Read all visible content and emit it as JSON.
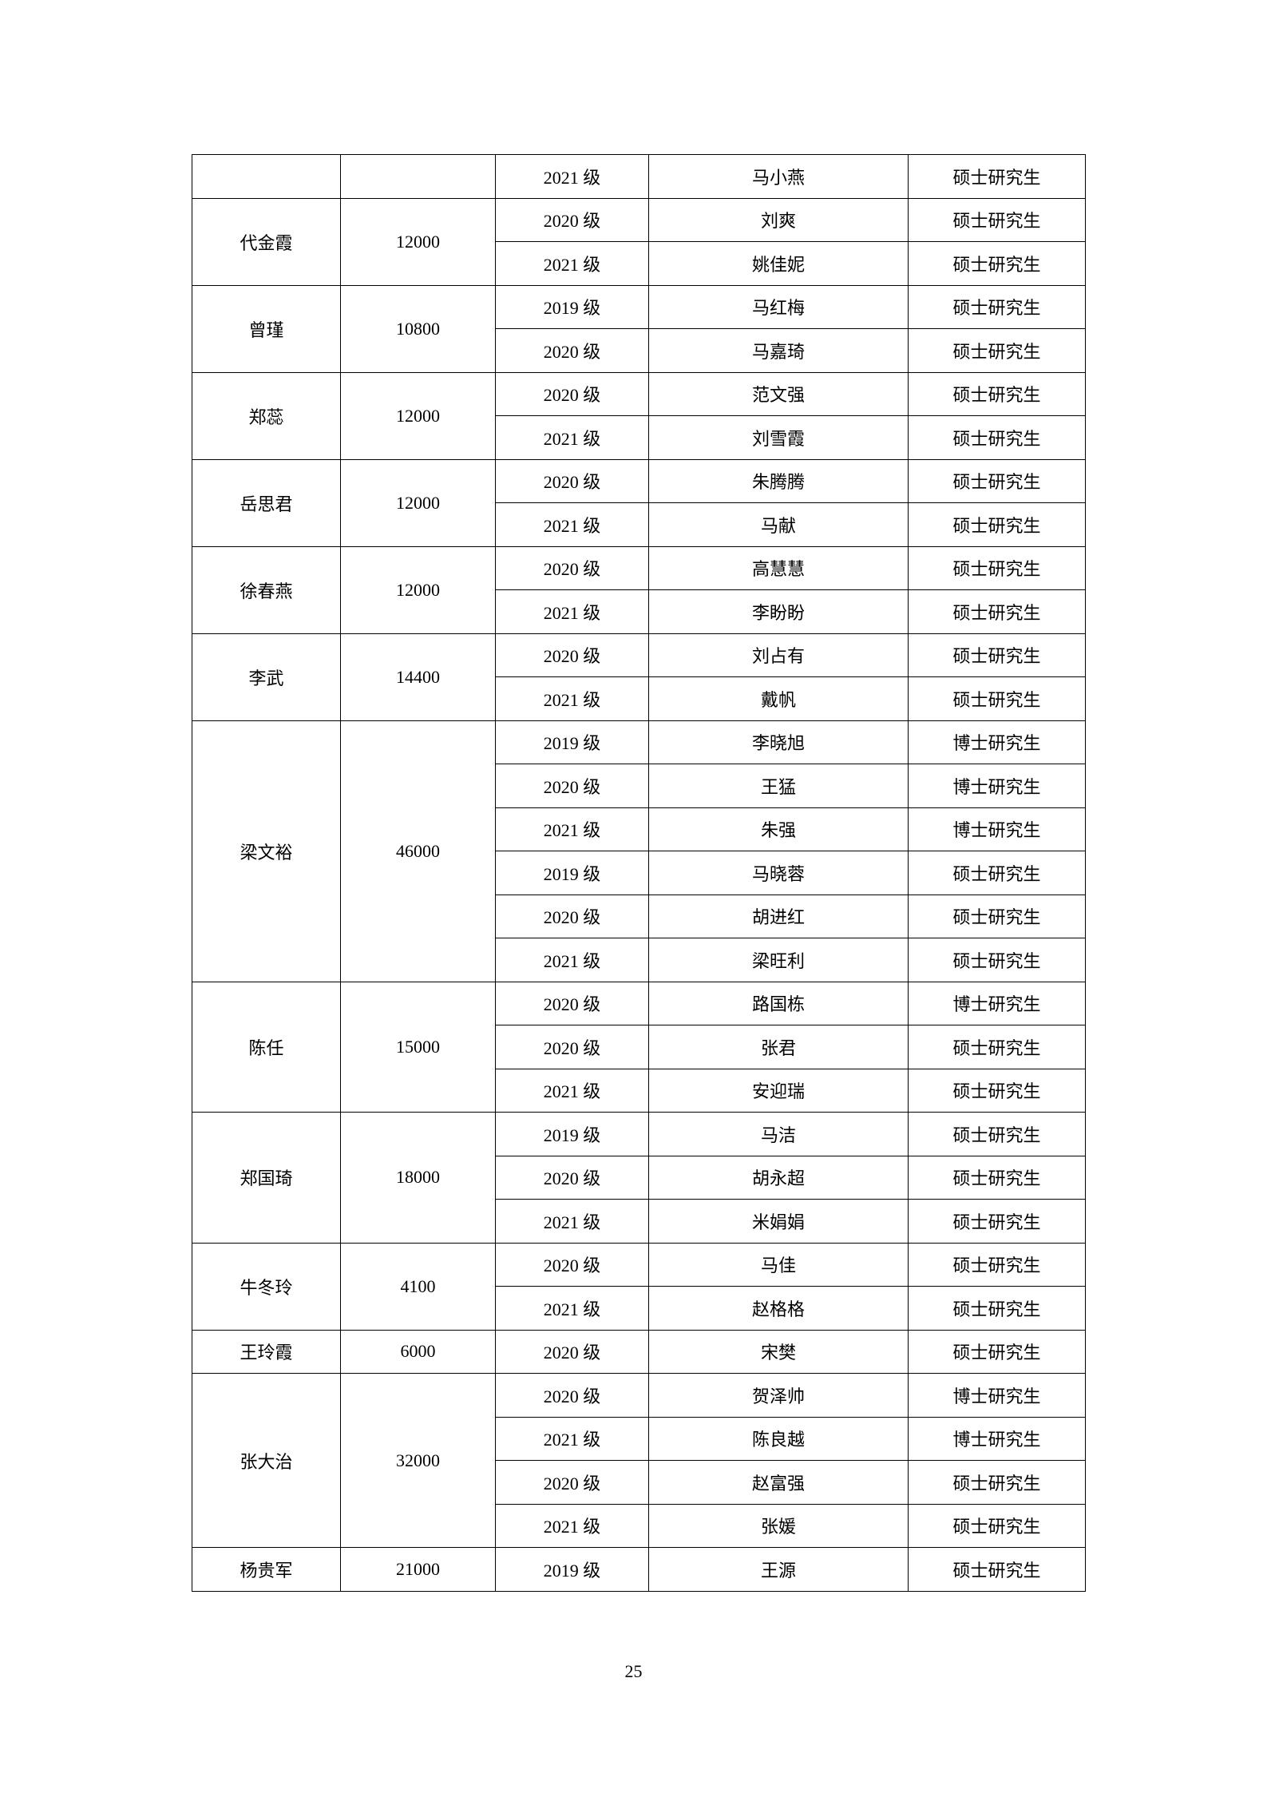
{
  "groups": [
    {
      "teacher": "",
      "amount": "",
      "students": [
        [
          "2021 级",
          "马小燕",
          "硕士研究生"
        ]
      ]
    },
    {
      "teacher": "代金霞",
      "amount": "12000",
      "students": [
        [
          "2020 级",
          "刘爽",
          "硕士研究生"
        ],
        [
          "2021 级",
          "姚佳妮",
          "硕士研究生"
        ]
      ]
    },
    {
      "teacher": "曾瑾",
      "amount": "10800",
      "students": [
        [
          "2019 级",
          "马红梅",
          "硕士研究生"
        ],
        [
          "2020 级",
          "马嘉琦",
          "硕士研究生"
        ]
      ]
    },
    {
      "teacher": "郑蕊",
      "amount": "12000",
      "students": [
        [
          "2020 级",
          "范文强",
          "硕士研究生"
        ],
        [
          "2021 级",
          "刘雪霞",
          "硕士研究生"
        ]
      ]
    },
    {
      "teacher": "岳思君",
      "amount": "12000",
      "students": [
        [
          "2020 级",
          "朱腾腾",
          "硕士研究生"
        ],
        [
          "2021 级",
          "马献",
          "硕士研究生"
        ]
      ]
    },
    {
      "teacher": "徐春燕",
      "amount": "12000",
      "students": [
        [
          "2020 级",
          "高慧慧",
          "硕士研究生"
        ],
        [
          "2021 级",
          "李盼盼",
          "硕士研究生"
        ]
      ]
    },
    {
      "teacher": "李武",
      "amount": "14400",
      "students": [
        [
          "2020 级",
          "刘占有",
          "硕士研究生"
        ],
        [
          "2021 级",
          "戴帆",
          "硕士研究生"
        ]
      ]
    },
    {
      "teacher": "梁文裕",
      "amount": "46000",
      "students": [
        [
          "2019 级",
          "李晓旭",
          "博士研究生"
        ],
        [
          "2020 级",
          "王猛",
          "博士研究生"
        ],
        [
          "2021 级",
          "朱强",
          "博士研究生"
        ],
        [
          "2019 级",
          "马晓蓉",
          "硕士研究生"
        ],
        [
          "2020 级",
          "胡进红",
          "硕士研究生"
        ],
        [
          "2021 级",
          "梁旺利",
          "硕士研究生"
        ]
      ]
    },
    {
      "teacher": "陈任",
      "amount": "15000",
      "students": [
        [
          "2020 级",
          "路国栋",
          "博士研究生"
        ],
        [
          "2020 级",
          "张君",
          "硕士研究生"
        ],
        [
          "2021 级",
          "安迎瑞",
          "硕士研究生"
        ]
      ]
    },
    {
      "teacher": "郑国琦",
      "amount": "18000",
      "students": [
        [
          "2019 级",
          "马洁",
          "硕士研究生"
        ],
        [
          "2020 级",
          "胡永超",
          "硕士研究生"
        ],
        [
          "2021 级",
          "米娟娟",
          "硕士研究生"
        ]
      ]
    },
    {
      "teacher": "牛冬玲",
      "amount": "4100",
      "students": [
        [
          "2020 级",
          "马佳",
          "硕士研究生"
        ],
        [
          "2021 级",
          "赵格格",
          "硕士研究生"
        ]
      ]
    },
    {
      "teacher": "王玲霞",
      "amount": "6000",
      "students": [
        [
          "2020 级",
          "宋樊",
          "硕士研究生"
        ]
      ]
    },
    {
      "teacher": "张大治",
      "amount": "32000",
      "students": [
        [
          "2020 级",
          "贺泽帅",
          "博士研究生"
        ],
        [
          "2021 级",
          "陈良越",
          "博士研究生"
        ],
        [
          "2020 级",
          "赵富强",
          "硕士研究生"
        ],
        [
          "2021 级",
          "张媛",
          "硕士研究生"
        ]
      ]
    },
    {
      "teacher": "杨贵军",
      "amount": "21000",
      "students": [
        [
          "2019 级",
          "王源",
          "硕士研究生"
        ]
      ]
    }
  ],
  "page_number": "25"
}
